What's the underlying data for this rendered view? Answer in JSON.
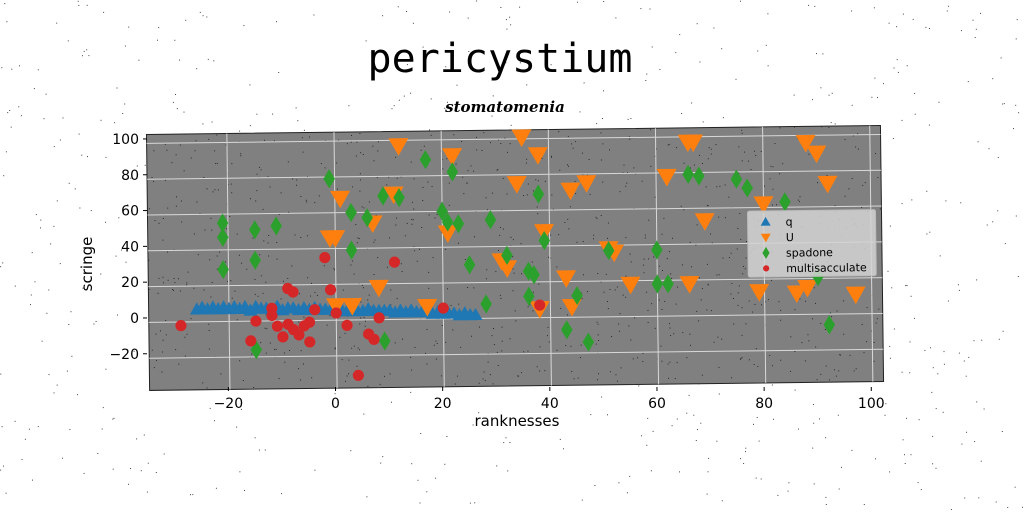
{
  "chart_data": {
    "type": "scatter",
    "title": "pericystium",
    "subtitle": "stomatomenia",
    "xlabel": "ranknesses",
    "ylabel": "scringe",
    "xlim": [
      -35,
      102
    ],
    "ylim": [
      -38,
      105
    ],
    "xticks": [
      -20,
      0,
      20,
      40,
      60,
      80,
      100
    ],
    "yticks": [
      -20,
      0,
      20,
      40,
      60,
      80,
      100
    ],
    "xtick_labels": [
      "−20",
      "0",
      "20",
      "40",
      "60",
      "80",
      "100"
    ],
    "ytick_labels": [
      "−20",
      "0",
      "20",
      "40",
      "60",
      "80",
      "100"
    ],
    "grid": true,
    "legend_position": "right",
    "background": "#808080",
    "series": [
      {
        "name": "q",
        "marker": "triangle-up",
        "color": "#1f77b4",
        "x": [
          -26,
          -25,
          -24,
          -23,
          -22,
          -21,
          -20,
          -19,
          -18,
          -17,
          -16,
          -15,
          -14,
          -13,
          -12,
          -11,
          -10,
          -9,
          -8,
          -7,
          -6,
          -5,
          -4,
          -3,
          -2,
          -1,
          0,
          1,
          2,
          3,
          4,
          5,
          6,
          7,
          8,
          9,
          10,
          11,
          12,
          13,
          14,
          15,
          16,
          17,
          18,
          19,
          20,
          21,
          22,
          23,
          24,
          25,
          26
        ],
        "y": [
          7,
          8,
          7,
          8,
          7,
          8,
          7,
          8,
          7,
          8,
          6,
          8,
          7,
          7,
          6,
          8,
          6,
          7,
          7,
          6,
          7,
          6,
          7,
          6,
          6,
          6,
          6,
          6,
          5,
          5,
          5,
          5,
          6,
          5,
          5,
          5,
          5,
          4,
          5,
          4,
          5,
          4,
          4,
          4,
          3,
          4,
          3,
          3,
          3,
          2,
          3,
          2,
          2
        ]
      },
      {
        "name": "U",
        "marker": "triangle-down",
        "color": "#ff7f0e",
        "x": [
          35,
          12,
          22,
          38,
          66,
          67,
          88,
          90,
          92,
          44,
          47,
          34,
          62,
          69,
          80,
          1,
          0,
          -1,
          11,
          7,
          21,
          31,
          39,
          52,
          51,
          43,
          32,
          38,
          55,
          8,
          3,
          0,
          17,
          44,
          66,
          79,
          86,
          88,
          97
        ],
        "y": [
          101,
          97,
          91,
          91,
          97,
          97,
          96,
          90,
          73,
          71,
          75,
          75,
          78,
          53,
          62,
          68,
          46,
          46,
          70,
          54,
          48,
          32,
          48,
          36,
          38,
          22,
          28,
          5,
          18,
          18,
          8,
          8,
          7,
          6,
          18,
          13,
          12,
          15,
          11
        ]
      },
      {
        "name": "spadone",
        "marker": "diamond",
        "color": "#2ca02c",
        "x": [
          -21,
          -21,
          -15,
          -11,
          -21,
          -15,
          -1,
          3,
          3,
          6,
          9,
          12,
          17,
          20,
          21,
          23,
          25,
          22,
          29,
          32,
          36,
          37,
          38,
          45,
          51,
          60,
          62,
          60,
          66,
          68,
          75,
          77,
          90,
          92,
          47,
          43,
          36,
          28,
          9,
          -15,
          39,
          84
        ],
        "y": [
          55,
          47,
          51,
          53,
          29,
          34,
          79,
          60,
          39,
          57,
          69,
          68,
          89,
          60,
          54,
          53,
          30,
          82,
          55,
          35,
          26,
          24,
          69,
          12,
          37,
          18,
          18,
          37,
          79,
          78,
          76,
          71,
          21,
          -6,
          -14,
          -7,
          12,
          8,
          -12,
          -16,
          43,
          63
        ]
      },
      {
        "name": "multisacculate",
        "marker": "circle",
        "color": "#d62728",
        "x": [
          -29,
          -16,
          -15,
          -12,
          -11,
          -10,
          -9,
          -8,
          -8,
          -7,
          -6,
          -5,
          -5,
          -4,
          -2,
          -1,
          0,
          2,
          6,
          7,
          8,
          4,
          11,
          -9,
          -12,
          38,
          20
        ],
        "y": [
          -2,
          -11,
          0,
          3,
          -3,
          -9,
          -2,
          -5,
          16,
          -8,
          -3,
          -1,
          -12,
          6,
          35,
          17,
          4,
          -3,
          -8,
          -11,
          1,
          -31,
          32,
          18,
          7,
          7,
          6
        ]
      }
    ]
  }
}
